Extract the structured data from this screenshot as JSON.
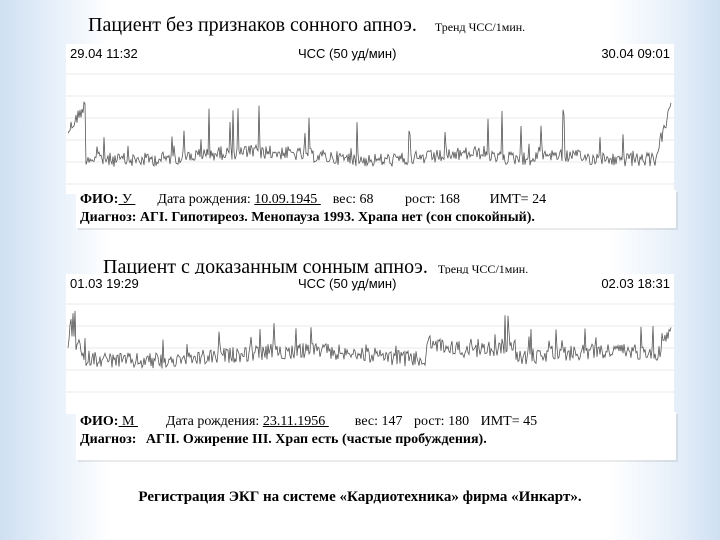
{
  "top": {
    "title": "Пациент без признаков сонного апноэ.",
    "trend": "Тренд ЧСС/1мин.",
    "chart_start": "29.04 11:32",
    "chart_label": "ЧСС (50 уд/мин)",
    "chart_end": "30.04 09:01",
    "fio_label": "ФИО:",
    "fio_value": " У ",
    "dob_label": "Дата рождения:",
    "dob_value": " 10.09.1945 ",
    "weight": "вес: 68",
    "height": "рост: 168",
    "bmi": "ИМТ= 24",
    "diagnosis": "Диагноз: АГI. Гипотиреоз. Менопауза 1993. Храпа нет (сон спокойный)."
  },
  "bottom": {
    "title": "Пациент с доказанным сонным апноэ.",
    "trend": "Тренд ЧСС/1мин.",
    "chart_start": "01.03 19:29",
    "chart_label": "ЧСС (50 уд/мин)",
    "chart_end": "02.03 18:31",
    "fio_label": "ФИО:",
    "fio_value": " М ",
    "dob_label": "Дата рождения:",
    "dob_value": " 23.11.1956 ",
    "weight": "вес: 147",
    "height": "рост: 180",
    "bmi": "ИМТ= 45",
    "diagnosis_label": "Диагноз:",
    "diagnosis": "АГII. Ожирение III. Храп есть (частые пробуждения)."
  },
  "footer": "Регистрация ЭКГ на системе «Кардиотехника» фирма «Инкарт».",
  "colors": {
    "trace": "#555555",
    "grid": "#d6d6d6"
  }
}
